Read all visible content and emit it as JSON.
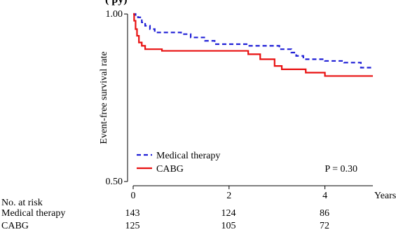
{
  "chart_data": {
    "type": "line",
    "title_partial": "(                                  py)",
    "ylabel": "Event-free survival rate",
    "xlabel": "Years",
    "xlim": [
      0,
      5
    ],
    "ylim": [
      0.5,
      1.0
    ],
    "x_ticks": [
      0,
      2,
      4
    ],
    "y_ticks": [
      0.5,
      1.0
    ],
    "y_tick_labels": [
      "0.50",
      "1.00"
    ],
    "x_tick_labels": [
      "0",
      "2",
      "4"
    ],
    "annotation": "P = 0.30",
    "legend_position": "bottom-left",
    "series": [
      {
        "name": "Medical therapy",
        "color": "#1f1fd6",
        "style": "dashed",
        "steps": [
          [
            0,
            1.0
          ],
          [
            0.05,
            0.997
          ],
          [
            0.1,
            0.99
          ],
          [
            0.18,
            0.975
          ],
          [
            0.25,
            0.965
          ],
          [
            0.35,
            0.955
          ],
          [
            0.45,
            0.945
          ],
          [
            1.0,
            0.94
          ],
          [
            1.2,
            0.93
          ],
          [
            1.5,
            0.92
          ],
          [
            1.7,
            0.91
          ],
          [
            2.4,
            0.905
          ],
          [
            3.05,
            0.895
          ],
          [
            3.3,
            0.885
          ],
          [
            3.4,
            0.875
          ],
          [
            3.55,
            0.865
          ],
          [
            4.0,
            0.86
          ],
          [
            4.4,
            0.855
          ],
          [
            4.75,
            0.84
          ],
          [
            5.0,
            0.84
          ]
        ]
      },
      {
        "name": "CABG",
        "color": "#e81010",
        "style": "solid",
        "steps": [
          [
            0,
            1.0
          ],
          [
            0.02,
            0.98
          ],
          [
            0.05,
            0.955
          ],
          [
            0.08,
            0.935
          ],
          [
            0.12,
            0.915
          ],
          [
            0.18,
            0.905
          ],
          [
            0.25,
            0.895
          ],
          [
            0.6,
            0.89
          ],
          [
            2.4,
            0.88
          ],
          [
            2.65,
            0.865
          ],
          [
            2.95,
            0.845
          ],
          [
            3.1,
            0.835
          ],
          [
            3.6,
            0.825
          ],
          [
            4.0,
            0.815
          ],
          [
            5.0,
            0.815
          ]
        ]
      }
    ]
  },
  "risk_table": {
    "header": "No. at risk",
    "rows": [
      {
        "label": "Medical therapy",
        "values": [
          "143",
          "124",
          "86"
        ]
      },
      {
        "label": "CABG",
        "values": [
          "125",
          "105",
          "72"
        ]
      }
    ]
  }
}
